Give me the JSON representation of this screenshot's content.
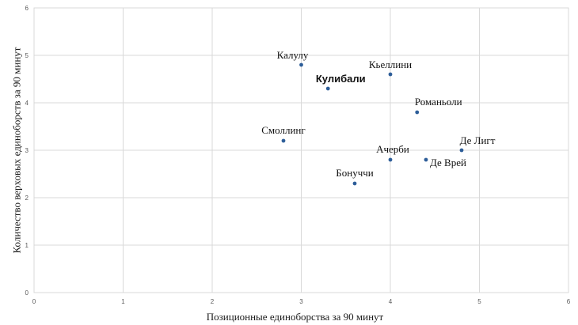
{
  "chart_data": {
    "type": "scatter",
    "xlabel": "Позиционные единоборства за 90 минут",
    "ylabel": "Количество верховых единоборств за 90 минут",
    "xlim": [
      0,
      6
    ],
    "ylim": [
      0,
      6
    ],
    "x_ticks": [
      "0",
      "1",
      "2",
      "3",
      "4",
      "5",
      "6"
    ],
    "y_ticks": [
      "0",
      "1",
      "2",
      "3",
      "4",
      "5",
      "6"
    ],
    "grid": true,
    "marker_color": "#2e5e99",
    "points": [
      {
        "label": "Калулу",
        "x": 3.0,
        "y": 4.8,
        "bold": false
      },
      {
        "label": "Кьеллини",
        "x": 4.0,
        "y": 4.6,
        "bold": false
      },
      {
        "label": "Кулибали",
        "x": 3.3,
        "y": 4.3,
        "bold": true
      },
      {
        "label": "Романьоли",
        "x": 4.3,
        "y": 3.8,
        "bold": false
      },
      {
        "label": "Смоллинг",
        "x": 2.8,
        "y": 3.2,
        "bold": false
      },
      {
        "label": "Де Лигт",
        "x": 4.8,
        "y": 3.0,
        "bold": false
      },
      {
        "label": "Ачерби",
        "x": 4.0,
        "y": 2.8,
        "bold": false
      },
      {
        "label": "Де Врей",
        "x": 4.4,
        "y": 2.8,
        "bold": false
      },
      {
        "label": "Бонуччи",
        "x": 3.6,
        "y": 2.3,
        "bold": false
      }
    ]
  }
}
